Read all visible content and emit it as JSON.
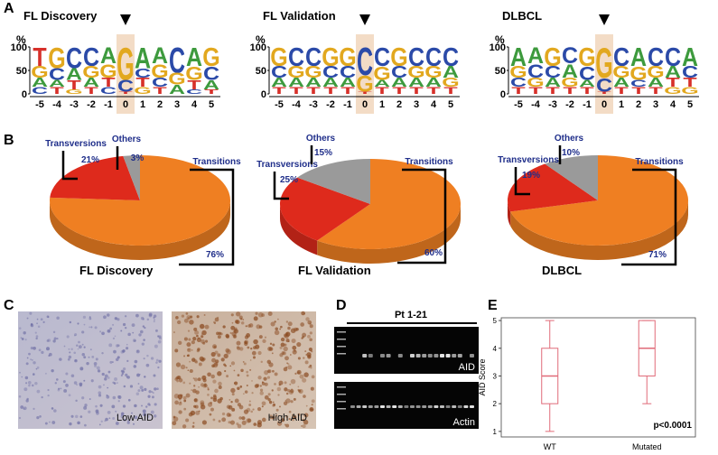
{
  "panel_labels": [
    "A",
    "B",
    "C",
    "D",
    "E"
  ],
  "logo_axis": {
    "label": "%",
    "yticks": [
      0,
      50,
      100
    ],
    "positions": [
      -5,
      -4,
      -3,
      -2,
      -1,
      0,
      1,
      2,
      3,
      4,
      5
    ]
  },
  "logos": [
    {
      "title": "FL Discovery",
      "stacks": [
        [
          {
            "base": "T",
            "height": 40
          },
          {
            "base": "G",
            "height": 25
          },
          {
            "base": "A",
            "height": 20
          },
          {
            "base": "C",
            "height": 15
          }
        ],
        [
          {
            "base": "G",
            "height": 45
          },
          {
            "base": "C",
            "height": 25
          },
          {
            "base": "A",
            "height": 15
          },
          {
            "base": "T",
            "height": 15
          }
        ],
        [
          {
            "base": "C",
            "height": 45
          },
          {
            "base": "A",
            "height": 25
          },
          {
            "base": "T",
            "height": 20
          },
          {
            "base": "G",
            "height": 10
          }
        ],
        [
          {
            "base": "C",
            "height": 40
          },
          {
            "base": "G",
            "height": 25
          },
          {
            "base": "A",
            "height": 20
          },
          {
            "base": "T",
            "height": 15
          }
        ],
        [
          {
            "base": "A",
            "height": 35
          },
          {
            "base": "G",
            "height": 30
          },
          {
            "base": "T",
            "height": 20
          },
          {
            "base": "C",
            "height": 15
          }
        ],
        [
          {
            "base": "G",
            "height": 70
          },
          {
            "base": "C",
            "height": 25
          },
          {
            "base": "T",
            "height": 5
          }
        ],
        [
          {
            "base": "A",
            "height": 45
          },
          {
            "base": "C",
            "height": 20
          },
          {
            "base": "T",
            "height": 20
          },
          {
            "base": "G",
            "height": 15
          }
        ],
        [
          {
            "base": "A",
            "height": 35
          },
          {
            "base": "G",
            "height": 30
          },
          {
            "base": "C",
            "height": 20
          },
          {
            "base": "T",
            "height": 15
          }
        ],
        [
          {
            "base": "C",
            "height": 55
          },
          {
            "base": "G",
            "height": 25
          },
          {
            "base": "A",
            "height": 20
          }
        ],
        [
          {
            "base": "A",
            "height": 40
          },
          {
            "base": "G",
            "height": 30
          },
          {
            "base": "T",
            "height": 20
          },
          {
            "base": "C",
            "height": 10
          }
        ],
        [
          {
            "base": "G",
            "height": 40
          },
          {
            "base": "C",
            "height": 30
          },
          {
            "base": "A",
            "height": 20
          },
          {
            "base": "T",
            "height": 10
          }
        ]
      ]
    },
    {
      "title": "FL Validation",
      "stacks": [
        [
          {
            "base": "G",
            "height": 40
          },
          {
            "base": "C",
            "height": 25
          },
          {
            "base": "A",
            "height": 20
          },
          {
            "base": "T",
            "height": 15
          }
        ],
        [
          {
            "base": "C",
            "height": 40
          },
          {
            "base": "G",
            "height": 25
          },
          {
            "base": "A",
            "height": 20
          },
          {
            "base": "T",
            "height": 15
          }
        ],
        [
          {
            "base": "C",
            "height": 40
          },
          {
            "base": "G",
            "height": 25
          },
          {
            "base": "A",
            "height": 20
          },
          {
            "base": "T",
            "height": 15
          }
        ],
        [
          {
            "base": "G",
            "height": 40
          },
          {
            "base": "C",
            "height": 25
          },
          {
            "base": "A",
            "height": 20
          },
          {
            "base": "T",
            "height": 15
          }
        ],
        [
          {
            "base": "G",
            "height": 40
          },
          {
            "base": "C",
            "height": 25
          },
          {
            "base": "A",
            "height": 20
          },
          {
            "base": "T",
            "height": 15
          }
        ],
        [
          {
            "base": "C",
            "height": 60
          },
          {
            "base": "G",
            "height": 35
          },
          {
            "base": "T",
            "height": 5
          }
        ],
        [
          {
            "base": "C",
            "height": 40
          },
          {
            "base": "G",
            "height": 30
          },
          {
            "base": "A",
            "height": 15
          },
          {
            "base": "T",
            "height": 15
          }
        ],
        [
          {
            "base": "G",
            "height": 40
          },
          {
            "base": "C",
            "height": 25
          },
          {
            "base": "A",
            "height": 20
          },
          {
            "base": "T",
            "height": 15
          }
        ],
        [
          {
            "base": "C",
            "height": 40
          },
          {
            "base": "G",
            "height": 25
          },
          {
            "base": "A",
            "height": 20
          },
          {
            "base": "T",
            "height": 15
          }
        ],
        [
          {
            "base": "C",
            "height": 40
          },
          {
            "base": "G",
            "height": 25
          },
          {
            "base": "A",
            "height": 20
          },
          {
            "base": "T",
            "height": 15
          }
        ],
        [
          {
            "base": "C",
            "height": 40
          },
          {
            "base": "A",
            "height": 25
          },
          {
            "base": "G",
            "height": 20
          },
          {
            "base": "T",
            "height": 15
          }
        ]
      ]
    },
    {
      "title": "DLBCL",
      "stacks": [
        [
          {
            "base": "A",
            "height": 40
          },
          {
            "base": "G",
            "height": 25
          },
          {
            "base": "C",
            "height": 20
          },
          {
            "base": "T",
            "height": 15
          }
        ],
        [
          {
            "base": "A",
            "height": 35
          },
          {
            "base": "C",
            "height": 30
          },
          {
            "base": "G",
            "height": 20
          },
          {
            "base": "T",
            "height": 15
          }
        ],
        [
          {
            "base": "G",
            "height": 40
          },
          {
            "base": "C",
            "height": 25
          },
          {
            "base": "A",
            "height": 20
          },
          {
            "base": "T",
            "height": 15
          }
        ],
        [
          {
            "base": "C",
            "height": 35
          },
          {
            "base": "A",
            "height": 30
          },
          {
            "base": "G",
            "height": 20
          },
          {
            "base": "T",
            "height": 15
          }
        ],
        [
          {
            "base": "G",
            "height": 40
          },
          {
            "base": "C",
            "height": 30
          },
          {
            "base": "A",
            "height": 15
          },
          {
            "base": "T",
            "height": 15
          }
        ],
        [
          {
            "base": "G",
            "height": 65
          },
          {
            "base": "C",
            "height": 30
          },
          {
            "base": "T",
            "height": 5
          }
        ],
        [
          {
            "base": "C",
            "height": 40
          },
          {
            "base": "G",
            "height": 25
          },
          {
            "base": "A",
            "height": 20
          },
          {
            "base": "T",
            "height": 15
          }
        ],
        [
          {
            "base": "A",
            "height": 40
          },
          {
            "base": "G",
            "height": 30
          },
          {
            "base": "C",
            "height": 15
          },
          {
            "base": "T",
            "height": 15
          }
        ],
        [
          {
            "base": "C",
            "height": 40
          },
          {
            "base": "G",
            "height": 25
          },
          {
            "base": "A",
            "height": 20
          },
          {
            "base": "T",
            "height": 15
          }
        ],
        [
          {
            "base": "C",
            "height": 40
          },
          {
            "base": "A",
            "height": 25
          },
          {
            "base": "T",
            "height": 20
          },
          {
            "base": "G",
            "height": 15
          }
        ],
        [
          {
            "base": "A",
            "height": 40
          },
          {
            "base": "C",
            "height": 25
          },
          {
            "base": "T",
            "height": 20
          },
          {
            "base": "G",
            "height": 15
          }
        ]
      ]
    }
  ],
  "base_colors": {
    "A": "#3d9a3d",
    "C": "#2b4aa8",
    "G": "#e2a81f",
    "T": "#d7302a"
  },
  "chart_data": [
    {
      "type": "pie",
      "title": "FL Discovery",
      "categories": [
        "Transitions",
        "Transversions",
        "Others"
      ],
      "values": [
        76,
        21,
        3
      ],
      "value_labels": [
        "76%",
        "21%",
        "3%"
      ],
      "colors": [
        "#ef7f22",
        "#de2a1c",
        "#9a9a9a"
      ]
    },
    {
      "type": "pie",
      "title": "FL Validation",
      "categories": [
        "Transitions",
        "Transversions",
        "Others"
      ],
      "values": [
        60,
        25,
        15
      ],
      "value_labels": [
        "60%",
        "25%",
        "15%"
      ],
      "colors": [
        "#ef7f22",
        "#de2a1c",
        "#9a9a9a"
      ]
    },
    {
      "type": "pie",
      "title": "DLBCL",
      "categories": [
        "Transitions",
        "Transversions",
        "Others"
      ],
      "values": [
        71,
        19,
        10
      ],
      "value_labels": [
        "71%",
        "19%",
        "10%"
      ],
      "colors": [
        "#ef7f22",
        "#de2a1c",
        "#9a9a9a"
      ]
    },
    {
      "type": "box",
      "categories": [
        "WT",
        "Mutated"
      ],
      "ylabel": "AID Score",
      "annotation": "p<0.0001",
      "boxes": [
        {
          "min": 1,
          "q1": 2,
          "median": 3,
          "q3": 4,
          "max": 5
        },
        {
          "min": 2,
          "q1": 3,
          "median": 4,
          "q3": 5,
          "max": 5
        }
      ],
      "color": "#e06a78",
      "ylim": [
        0.8,
        5.1
      ],
      "yticks": [
        1,
        2,
        3,
        4,
        5
      ]
    }
  ],
  "histology": {
    "labels": [
      "Low AID",
      "High AID"
    ]
  },
  "gel": {
    "title": "Pt 1-21",
    "labels": [
      "AID",
      "Actin"
    ]
  }
}
